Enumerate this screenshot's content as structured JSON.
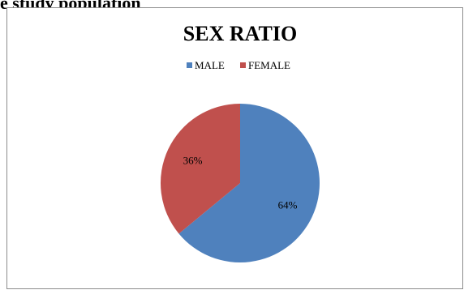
{
  "caption": "e study population",
  "chart_data": {
    "type": "pie",
    "title": "SEX RATIO",
    "legend_position": "top",
    "series": [
      {
        "name": "MALE",
        "value": 64,
        "label": "64%",
        "color": "#4f81bd"
      },
      {
        "name": "FEMALE",
        "value": 36,
        "label": "36%",
        "color": "#c0504d"
      }
    ]
  }
}
